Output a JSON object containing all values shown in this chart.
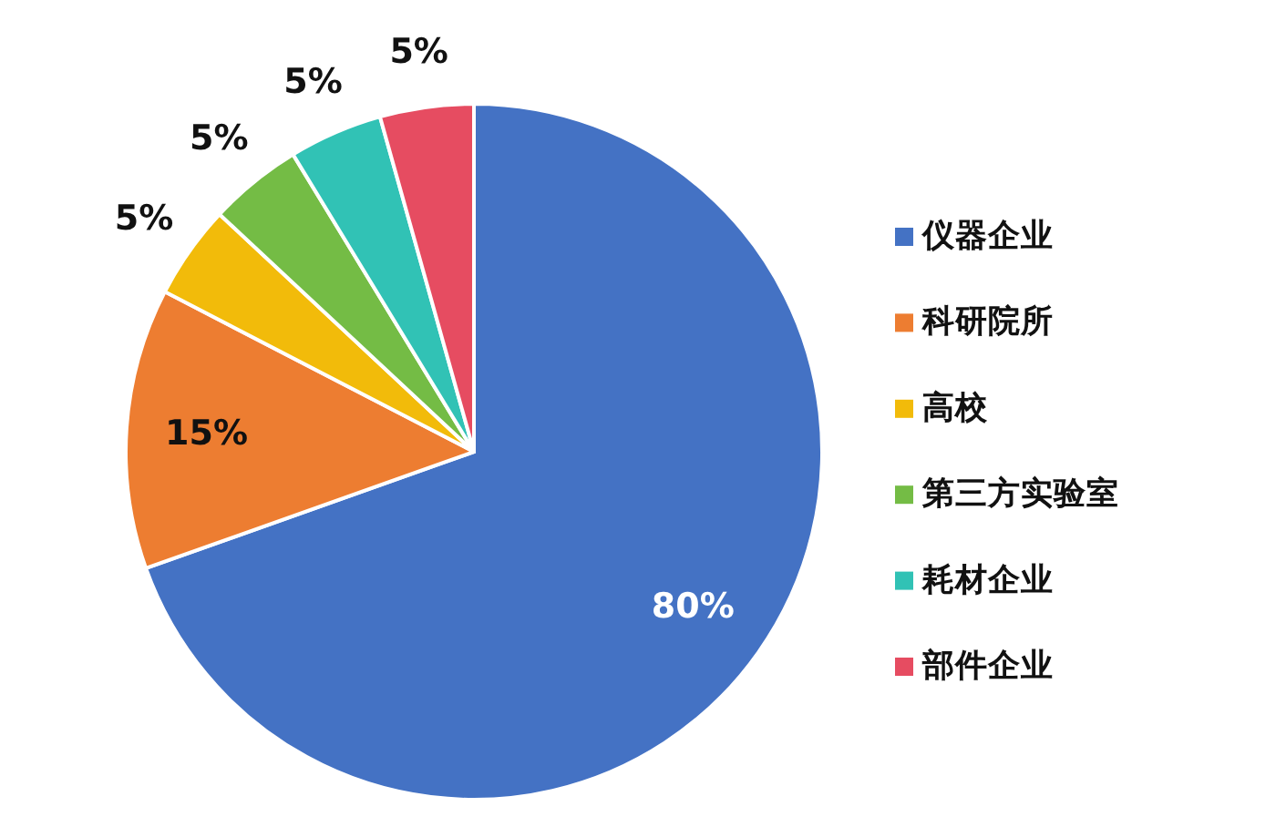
{
  "chart_data": {
    "type": "pie",
    "categories": [
      "仪器企业",
      "科研院所",
      "高校",
      "第三方实验室",
      "耗材企业",
      "部件企业"
    ],
    "values": [
      80,
      15,
      5,
      5,
      5,
      5
    ],
    "colors": [
      "#4472c4",
      "#ed7d31",
      "#f2bb0a",
      "#74bc45",
      "#31c2b5",
      "#e64c61"
    ],
    "value_labels": [
      "80%",
      "15%",
      "5%",
      "5%",
      "5%",
      "5%"
    ],
    "legend": "right"
  }
}
